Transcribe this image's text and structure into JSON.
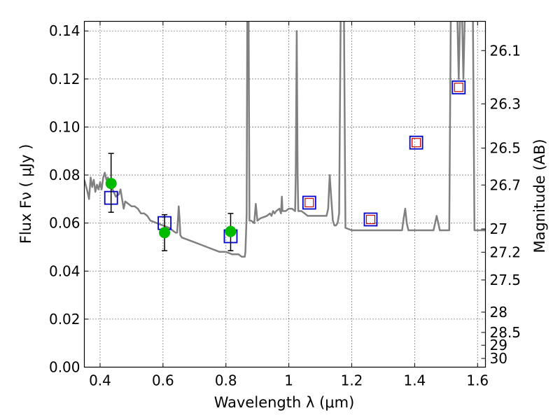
{
  "chart_data": {
    "type": "scatter",
    "xlabel": "Wavelength  λ (μm)",
    "ylabel": "Flux  Fν  ( μJy )",
    "ylabel_right": "Magnitude (AB)",
    "xlim": [
      0.35,
      1.625
    ],
    "ylim": [
      0.0,
      0.144
    ],
    "x_ticks": [
      {
        "value": 0.4,
        "label": "0.4"
      },
      {
        "value": 0.6,
        "label": "0.6"
      },
      {
        "value": 0.8,
        "label": "0.8"
      },
      {
        "value": 1.0,
        "label": "1"
      },
      {
        "value": 1.2,
        "label": "1.2"
      },
      {
        "value": 1.4,
        "label": "1.4"
      },
      {
        "value": 1.6,
        "label": "1.6"
      }
    ],
    "y_ticks": [
      {
        "value": 0.0,
        "label": "0.00"
      },
      {
        "value": 0.02,
        "label": "0.02"
      },
      {
        "value": 0.04,
        "label": "0.04"
      },
      {
        "value": 0.06,
        "label": "0.06"
      },
      {
        "value": 0.08,
        "label": "0.08"
      },
      {
        "value": 0.1,
        "label": "0.10"
      },
      {
        "value": 0.12,
        "label": "0.12"
      },
      {
        "value": 0.14,
        "label": "0.14"
      }
    ],
    "right_ticks": [
      {
        "mag": 26.1,
        "label": "26.1"
      },
      {
        "mag": 26.3,
        "label": "26.3"
      },
      {
        "mag": 26.5,
        "label": "26.5"
      },
      {
        "mag": 26.7,
        "label": "26.7"
      },
      {
        "mag": 27.0,
        "label": "27"
      },
      {
        "mag": 27.2,
        "label": "27.2"
      },
      {
        "mag": 27.5,
        "label": "27.5"
      },
      {
        "mag": 28.0,
        "label": "28"
      },
      {
        "mag": 28.5,
        "label": "28.5"
      },
      {
        "mag": 29.0,
        "label": "29"
      },
      {
        "mag": 30.0,
        "label": "30"
      }
    ],
    "grid": true,
    "model_spectrum": {
      "color": "#808080",
      "points": [
        [
          0.35,
          0.078
        ],
        [
          0.36,
          0.073
        ],
        [
          0.365,
          0.07
        ],
        [
          0.37,
          0.079
        ],
        [
          0.375,
          0.075
        ],
        [
          0.38,
          0.078
        ],
        [
          0.385,
          0.073
        ],
        [
          0.39,
          0.076
        ],
        [
          0.395,
          0.074
        ],
        [
          0.4,
          0.077
        ],
        [
          0.405,
          0.074
        ],
        [
          0.41,
          0.079
        ],
        [
          0.415,
          0.081
        ],
        [
          0.42,
          0.078
        ],
        [
          0.425,
          0.079
        ],
        [
          0.43,
          0.076
        ],
        [
          0.44,
          0.074
        ],
        [
          0.45,
          0.071
        ],
        [
          0.46,
          0.072
        ],
        [
          0.465,
          0.074
        ],
        [
          0.47,
          0.07
        ],
        [
          0.475,
          0.066
        ],
        [
          0.48,
          0.069
        ],
        [
          0.49,
          0.068
        ],
        [
          0.5,
          0.067
        ],
        [
          0.51,
          0.067
        ],
        [
          0.52,
          0.066
        ],
        [
          0.53,
          0.064
        ],
        [
          0.54,
          0.064
        ],
        [
          0.55,
          0.063
        ],
        [
          0.56,
          0.061
        ],
        [
          0.58,
          0.06
        ],
        [
          0.6,
          0.059
        ],
        [
          0.62,
          0.058
        ],
        [
          0.63,
          0.057
        ],
        [
          0.64,
          0.056
        ],
        [
          0.645,
          0.056
        ],
        [
          0.65,
          0.067
        ],
        [
          0.653,
          0.061
        ],
        [
          0.655,
          0.055
        ],
        [
          0.66,
          0.054
        ],
        [
          0.68,
          0.053
        ],
        [
          0.7,
          0.052
        ],
        [
          0.72,
          0.051
        ],
        [
          0.74,
          0.05
        ],
        [
          0.76,
          0.049
        ],
        [
          0.78,
          0.048
        ],
        [
          0.8,
          0.048
        ],
        [
          0.82,
          0.047
        ],
        [
          0.84,
          0.047
        ],
        [
          0.85,
          0.046
        ],
        [
          0.86,
          0.046
        ],
        [
          0.862,
          0.048
        ],
        [
          0.866,
          0.064
        ],
        [
          0.868,
          0.15
        ],
        [
          0.872,
          0.15
        ],
        [
          0.875,
          0.061
        ],
        [
          0.88,
          0.061
        ],
        [
          0.89,
          0.06
        ],
        [
          0.895,
          0.068
        ],
        [
          0.9,
          0.061
        ],
        [
          0.91,
          0.062
        ],
        [
          0.93,
          0.063
        ],
        [
          0.94,
          0.064
        ],
        [
          0.945,
          0.063
        ],
        [
          0.95,
          0.065
        ],
        [
          0.955,
          0.064
        ],
        [
          0.96,
          0.065
        ],
        [
          0.97,
          0.066
        ],
        [
          0.975,
          0.064
        ],
        [
          0.978,
          0.071
        ],
        [
          0.98,
          0.065
        ],
        [
          0.99,
          0.065
        ],
        [
          1.0,
          0.066
        ],
        [
          1.01,
          0.066
        ],
        [
          1.02,
          0.065
        ],
        [
          1.022,
          0.08
        ],
        [
          1.025,
          0.14
        ],
        [
          1.028,
          0.08
        ],
        [
          1.03,
          0.065
        ],
        [
          1.04,
          0.065
        ],
        [
          1.05,
          0.064
        ],
        [
          1.06,
          0.063
        ],
        [
          1.08,
          0.063
        ],
        [
          1.1,
          0.063
        ],
        [
          1.12,
          0.063
        ],
        [
          1.125,
          0.066
        ],
        [
          1.13,
          0.08
        ],
        [
          1.135,
          0.07
        ],
        [
          1.14,
          0.061
        ],
        [
          1.145,
          0.059
        ],
        [
          1.15,
          0.059
        ],
        [
          1.155,
          0.06
        ],
        [
          1.16,
          0.064
        ],
        [
          1.165,
          0.15
        ],
        [
          1.175,
          0.15
        ],
        [
          1.18,
          0.058
        ],
        [
          1.2,
          0.057
        ],
        [
          1.22,
          0.057
        ],
        [
          1.24,
          0.057
        ],
        [
          1.26,
          0.057
        ],
        [
          1.28,
          0.057
        ],
        [
          1.3,
          0.057
        ],
        [
          1.32,
          0.057
        ],
        [
          1.34,
          0.057
        ],
        [
          1.36,
          0.057
        ],
        [
          1.365,
          0.062
        ],
        [
          1.37,
          0.066
        ],
        [
          1.375,
          0.06
        ],
        [
          1.38,
          0.057
        ],
        [
          1.4,
          0.057
        ],
        [
          1.42,
          0.057
        ],
        [
          1.44,
          0.057
        ],
        [
          1.46,
          0.057
        ],
        [
          1.465,
          0.06
        ],
        [
          1.47,
          0.063
        ],
        [
          1.475,
          0.06
        ],
        [
          1.48,
          0.057
        ],
        [
          1.5,
          0.057
        ],
        [
          1.51,
          0.057
        ],
        [
          1.515,
          0.15
        ],
        [
          1.535,
          0.15
        ],
        [
          1.54,
          0.12
        ],
        [
          1.545,
          0.15
        ],
        [
          1.55,
          0.15
        ],
        [
          1.555,
          0.12
        ],
        [
          1.56,
          0.15
        ],
        [
          1.585,
          0.15
        ],
        [
          1.59,
          0.057
        ],
        [
          1.625,
          0.057
        ]
      ]
    },
    "model_bands": {
      "color": "#0000cc",
      "points": [
        [
          0.435,
          0.0705
        ],
        [
          0.605,
          0.06
        ],
        [
          0.815,
          0.0545
        ],
        [
          1.065,
          0.0685
        ],
        [
          1.26,
          0.0615
        ],
        [
          1.405,
          0.0935
        ],
        [
          1.54,
          0.1165
        ]
      ]
    },
    "observed_limits": {
      "color": "#cc0000",
      "points": [
        [
          1.065,
          0.0685
        ],
        [
          1.26,
          0.0615
        ],
        [
          1.405,
          0.0935
        ],
        [
          1.54,
          0.1165
        ]
      ]
    },
    "detections": {
      "color": "#00bb00",
      "points": [
        {
          "x": 0.435,
          "y": 0.0765,
          "err_lo": 0.0645,
          "err_hi": 0.089
        },
        {
          "x": 0.605,
          "y": 0.056,
          "err_lo": 0.0485,
          "err_hi": 0.0635
        },
        {
          "x": 0.815,
          "y": 0.0565,
          "err_lo": 0.0485,
          "err_hi": 0.064
        }
      ]
    }
  }
}
